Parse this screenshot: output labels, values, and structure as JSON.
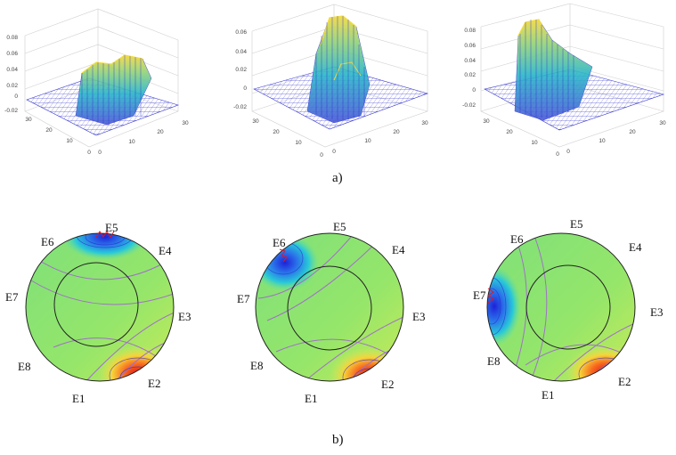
{
  "caption_a": "a)",
  "caption_b": "b)",
  "surface_plots": [
    {
      "z_ticks": [
        "0.08",
        "0.06",
        "0.04",
        "0.02",
        "0",
        "-0.02"
      ],
      "x_ticks": [
        "0",
        "10",
        "20",
        "30"
      ],
      "y_ticks": [
        "0",
        "10",
        "20",
        "30"
      ]
    },
    {
      "z_ticks": [
        "0.06",
        "0.04",
        "0.02",
        "0",
        "-0.02"
      ],
      "x_ticks": [
        "0",
        "10",
        "20",
        "30"
      ],
      "y_ticks": [
        "0",
        "10",
        "20",
        "30"
      ]
    },
    {
      "z_ticks": [
        "0.08",
        "0.06",
        "0.04",
        "0.02",
        "0",
        "-0.02"
      ],
      "x_ticks": [
        "0",
        "10",
        "20",
        "30"
      ],
      "y_ticks": [
        "0",
        "10",
        "20",
        "30"
      ]
    }
  ],
  "electrode_maps": [
    {
      "labels": [
        "E1",
        "E2",
        "E3",
        "E4",
        "E5",
        "E6",
        "E7",
        "E8"
      ],
      "active": "E5"
    },
    {
      "labels": [
        "E1",
        "E2",
        "E3",
        "E4",
        "E5",
        "E6",
        "E7",
        "E8"
      ],
      "active": "E6"
    },
    {
      "labels": [
        "E1",
        "E2",
        "E3",
        "E4",
        "E5",
        "E6",
        "E7",
        "E8"
      ],
      "active": "E7"
    }
  ],
  "colors": {
    "field": "#8ee66b",
    "high": "#e8141e",
    "low": "#2a2ee0",
    "contour": "#a070c8",
    "mesh": "#3a3ad0"
  }
}
